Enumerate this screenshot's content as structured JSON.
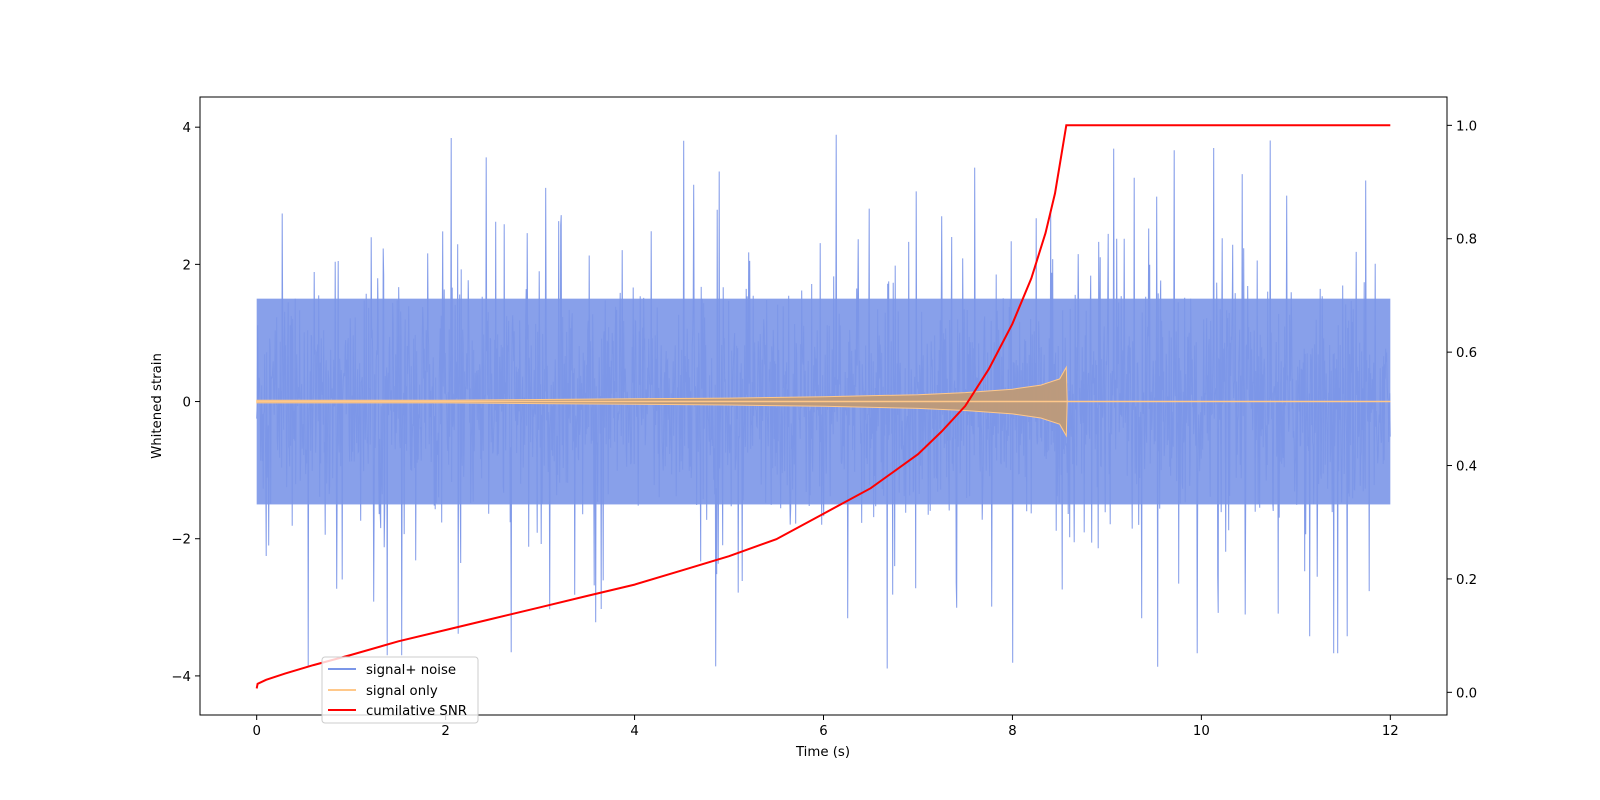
{
  "chart_data": {
    "type": "line",
    "title": "",
    "xlabel": "Time (s)",
    "ylabel": "Whitened strain",
    "y2label": "",
    "xlim": [
      -0.6,
      12.6
    ],
    "ylim": [
      -4.57,
      4.44
    ],
    "y2lim": [
      -0.04,
      1.05
    ],
    "xticks": [
      0,
      2,
      4,
      6,
      8,
      10,
      12
    ],
    "yticks": [
      -4,
      -2,
      0,
      2,
      4
    ],
    "y2ticks": [
      0.0,
      0.2,
      0.4,
      0.6,
      0.8,
      1.0
    ],
    "ytick_labels": [
      "−4",
      "−2",
      "0",
      "2",
      "4"
    ],
    "y2tick_labels": [
      "0.0",
      "0.2",
      "0.4",
      "0.6",
      "0.8",
      "1.0"
    ],
    "grid": false,
    "legend": {
      "position": "lower-left",
      "entries": [
        {
          "label": "signal+ noise",
          "color": "#7b96e8"
        },
        {
          "label": "signal only",
          "color": "#ffc88a"
        },
        {
          "label": "cumilative SNR",
          "color": "#ff0000"
        }
      ]
    },
    "series": [
      {
        "name": "signal+ noise",
        "axis": "left",
        "color": "#7b96e8",
        "x_range": [
          0,
          12
        ],
        "core_amplitude": 1.5,
        "max_abs": 3.9
      },
      {
        "name": "signal only",
        "axis": "left",
        "color": "#ffc88a",
        "x": [
          0,
          1,
          2,
          3,
          4,
          5,
          6,
          7,
          7.5,
          8,
          8.3,
          8.5,
          8.57,
          8.58,
          12
        ],
        "amplitude": [
          0.02,
          0.02,
          0.02,
          0.03,
          0.04,
          0.05,
          0.07,
          0.1,
          0.13,
          0.18,
          0.24,
          0.33,
          0.5,
          0,
          0
        ]
      },
      {
        "name": "cumilative SNR",
        "axis": "right",
        "color": "#ff0000",
        "x": [
          0,
          0.01,
          0.1,
          0.3,
          0.6,
          1,
          1.5,
          2,
          2.5,
          3,
          3.5,
          4,
          4.5,
          5,
          5.5,
          6,
          6.5,
          7,
          7.25,
          7.5,
          7.75,
          8,
          8.2,
          8.35,
          8.45,
          8.52,
          8.57,
          8.58,
          12
        ],
        "y": [
          0.007,
          0.015,
          0.022,
          0.033,
          0.048,
          0.066,
          0.09,
          0.11,
          0.13,
          0.15,
          0.17,
          0.19,
          0.215,
          0.24,
          0.27,
          0.315,
          0.36,
          0.42,
          0.46,
          0.505,
          0.57,
          0.65,
          0.73,
          0.81,
          0.88,
          0.95,
          1.0,
          1.0,
          1.0
        ]
      }
    ]
  }
}
